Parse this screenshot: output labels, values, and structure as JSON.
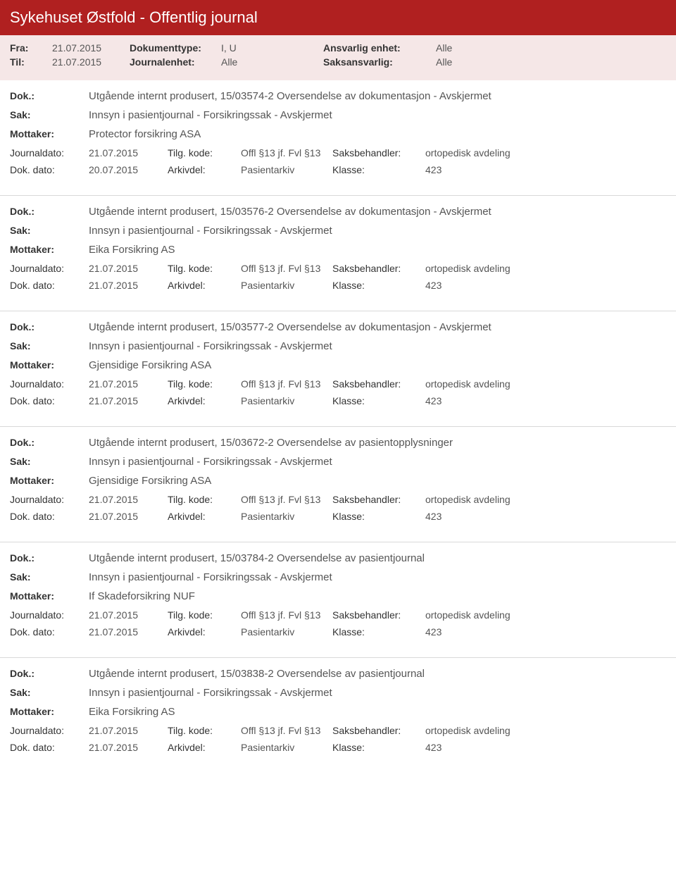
{
  "header": {
    "title": "Sykehuset Østfold - Offentlig journal"
  },
  "filters": {
    "fra_label": "Fra:",
    "fra_value": "21.07.2015",
    "til_label": "Til:",
    "til_value": "21.07.2015",
    "doktype_label": "Dokumenttype:",
    "doktype_value": "I, U",
    "journalenhet_label": "Journalenhet:",
    "journalenhet_value": "Alle",
    "ansvarlig_label": "Ansvarlig enhet:",
    "ansvarlig_value": "Alle",
    "saksansvarlig_label": "Saksansvarlig:",
    "saksansvarlig_value": "Alle"
  },
  "labels": {
    "dok": "Dok.:",
    "sak": "Sak:",
    "mottaker": "Mottaker:",
    "journaldato": "Journaldato:",
    "dokdato": "Dok. dato:",
    "tilgkode": "Tilg. kode:",
    "arkivdel": "Arkivdel:",
    "saksbehandler": "Saksbehandler:",
    "klasse": "Klasse:"
  },
  "entries": [
    {
      "dok": "Utgående internt produsert, 15/03574-2 Oversendelse av dokumentasjon - Avskjermet",
      "sak": "Innsyn i pasientjournal - Forsikringssak - Avskjermet",
      "mottaker": "Protector forsikring ASA",
      "journaldato": "21.07.2015",
      "dokdato": "20.07.2015",
      "tilgkode": "Offl §13 jf. Fvl §13",
      "arkivdel": "Pasientarkiv",
      "saksbehandler": "ortopedisk avdeling",
      "klasse": "423"
    },
    {
      "dok": "Utgående internt produsert, 15/03576-2 Oversendelse av dokumentasjon - Avskjermet",
      "sak": "Innsyn i pasientjournal - Forsikringssak - Avskjermet",
      "mottaker": "Eika Forsikring AS",
      "journaldato": "21.07.2015",
      "dokdato": "21.07.2015",
      "tilgkode": "Offl §13 jf. Fvl §13",
      "arkivdel": "Pasientarkiv",
      "saksbehandler": "ortopedisk avdeling",
      "klasse": "423"
    },
    {
      "dok": "Utgående internt produsert, 15/03577-2 Oversendelse av dokumentasjon - Avskjermet",
      "sak": "Innsyn i pasientjournal - Forsikringssak - Avskjermet",
      "mottaker": "Gjensidige Forsikring ASA",
      "journaldato": "21.07.2015",
      "dokdato": "21.07.2015",
      "tilgkode": "Offl §13 jf. Fvl §13",
      "arkivdel": "Pasientarkiv",
      "saksbehandler": "ortopedisk avdeling",
      "klasse": "423"
    },
    {
      "dok": "Utgående internt produsert, 15/03672-2 Oversendelse av pasientopplysninger",
      "sak": "Innsyn i pasientjournal - Forsikringssak - Avskjermet",
      "mottaker": "Gjensidige Forsikring ASA",
      "journaldato": "21.07.2015",
      "dokdato": "21.07.2015",
      "tilgkode": "Offl §13 jf. Fvl §13",
      "arkivdel": "Pasientarkiv",
      "saksbehandler": "ortopedisk avdeling",
      "klasse": "423"
    },
    {
      "dok": "Utgående internt produsert, 15/03784-2 Oversendelse av pasientjournal",
      "sak": "Innsyn i pasientjournal - Forsikringssak - Avskjermet",
      "mottaker": "If Skadeforsikring NUF",
      "journaldato": "21.07.2015",
      "dokdato": "21.07.2015",
      "tilgkode": "Offl §13 jf. Fvl §13",
      "arkivdel": "Pasientarkiv",
      "saksbehandler": "ortopedisk avdeling",
      "klasse": "423"
    },
    {
      "dok": "Utgående internt produsert, 15/03838-2 Oversendelse av pasientjournal",
      "sak": "Innsyn i pasientjournal - Forsikringssak - Avskjermet",
      "mottaker": "Eika Forsikring AS",
      "journaldato": "21.07.2015",
      "dokdato": "21.07.2015",
      "tilgkode": "Offl §13 jf. Fvl §13",
      "arkivdel": "Pasientarkiv",
      "saksbehandler": "ortopedisk avdeling",
      "klasse": "423"
    }
  ]
}
